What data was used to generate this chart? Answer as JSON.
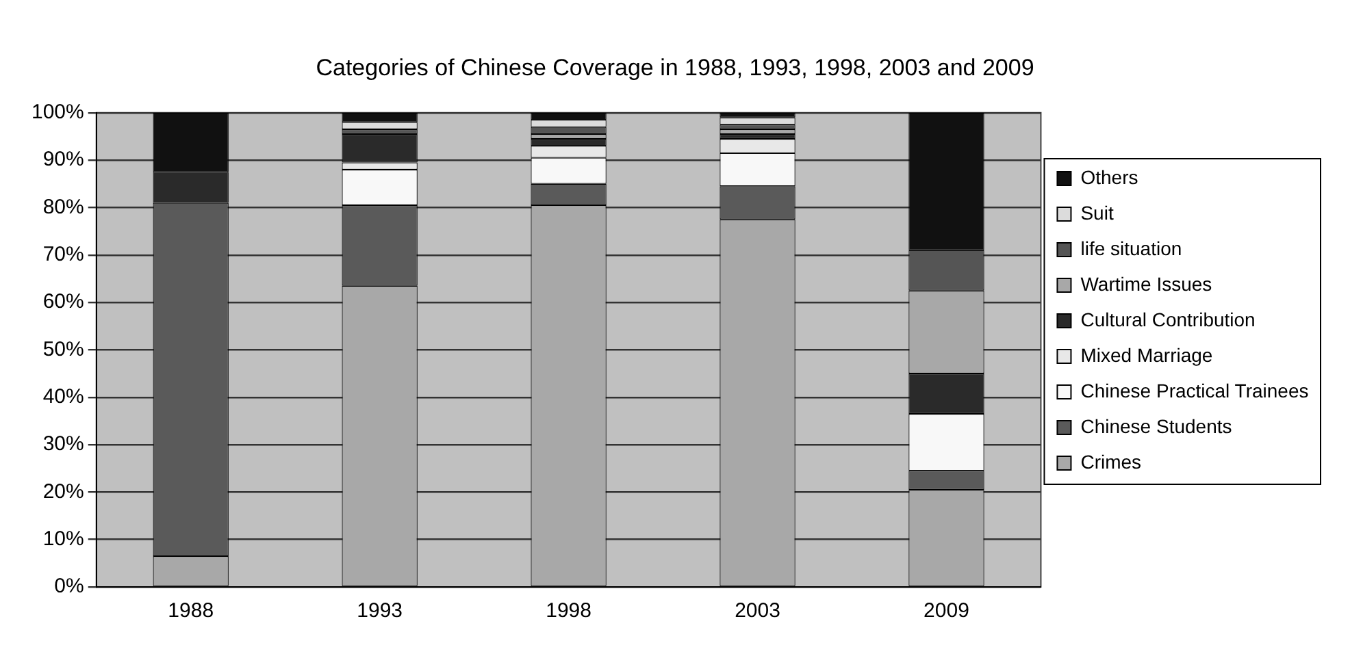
{
  "chart_data": {
    "type": "bar",
    "stacked": true,
    "title": "Categories of Chinese Coverage in 1988, 1993, 1998, 2003 and 2009",
    "categories": [
      "1988",
      "1993",
      "1998",
      "2003",
      "2009"
    ],
    "series": [
      {
        "name": "Crimes",
        "color": "#a8a8a8",
        "values": [
          6.5,
          63.5,
          80.5,
          77.5,
          20.5
        ]
      },
      {
        "name": "Chinese Students",
        "color": "#5a5a5a",
        "values": [
          74.5,
          17,
          4.5,
          7,
          4
        ]
      },
      {
        "name": "Chinese Practical Trainees",
        "color": "#f8f8f8",
        "values": [
          0,
          7.5,
          5.5,
          7,
          12
        ]
      },
      {
        "name": "Mixed Marriage",
        "color": "#e8e8e8",
        "values": [
          0,
          1.5,
          2.5,
          3,
          0
        ]
      },
      {
        "name": "Cultural Contribution",
        "color": "#2a2a2a",
        "values": [
          6.5,
          6,
          1.5,
          1,
          8.5
        ]
      },
      {
        "name": "Wartime Issues",
        "color": "#a8a8a8",
        "values": [
          0,
          0,
          1,
          1,
          17.5
        ]
      },
      {
        "name": "life situation",
        "color": "#555555",
        "values": [
          0,
          1,
          1.5,
          1,
          8.5
        ]
      },
      {
        "name": "Suit",
        "color": "#dcdcdc",
        "values": [
          0,
          1.5,
          1.5,
          1.5,
          0
        ]
      },
      {
        "name": "Others",
        "color": "#111111",
        "values": [
          12.5,
          2,
          1.5,
          1,
          29
        ]
      }
    ],
    "ylim": [
      0,
      100
    ],
    "yticks": [
      {
        "value": 0,
        "label": "0%"
      },
      {
        "value": 10,
        "label": "10%"
      },
      {
        "value": 20,
        "label": "20%"
      },
      {
        "value": 30,
        "label": "30%"
      },
      {
        "value": 40,
        "label": "40%"
      },
      {
        "value": 50,
        "label": "50%"
      },
      {
        "value": 60,
        "label": "60%"
      },
      {
        "value": 70,
        "label": "70%"
      },
      {
        "value": 80,
        "label": "80%"
      },
      {
        "value": 90,
        "label": "90%"
      },
      {
        "value": 100,
        "label": "100%"
      }
    ],
    "grid": "y",
    "legend": "right"
  }
}
